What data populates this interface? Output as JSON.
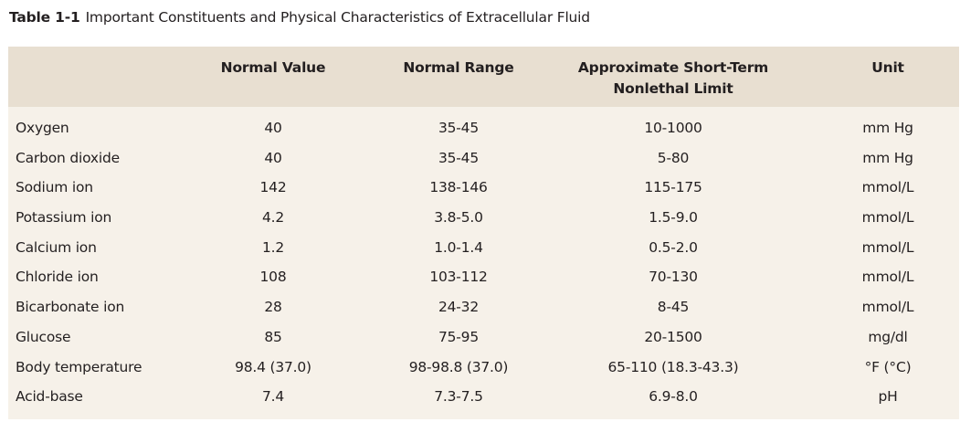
{
  "caption": {
    "label": "Table 1-1",
    "title": "Important Constituents and Physical Characteristics of Extracellular Fluid"
  },
  "headers": {
    "normal_value": "Normal Value",
    "normal_range": "Normal Range",
    "limit_line1": "Approximate Short-Term",
    "limit_line2": "Nonlethal Limit",
    "unit": "Unit"
  },
  "rows": [
    {
      "name": "Oxygen",
      "normal_value": "40",
      "normal_range": "35-45",
      "limit": "10-1000",
      "unit": "mm Hg"
    },
    {
      "name": "Carbon dioxide",
      "normal_value": "40",
      "normal_range": "35-45",
      "limit": "5-80",
      "unit": "mm Hg"
    },
    {
      "name": "Sodium ion",
      "normal_value": "142",
      "normal_range": "138-146",
      "limit": "115-175",
      "unit": "mmol/L"
    },
    {
      "name": "Potassium ion",
      "normal_value": "4.2",
      "normal_range": "3.8-5.0",
      "limit": "1.5-9.0",
      "unit": "mmol/L"
    },
    {
      "name": "Calcium ion",
      "normal_value": "1.2",
      "normal_range": "1.0-1.4",
      "limit": "0.5-2.0",
      "unit": "mmol/L"
    },
    {
      "name": "Chloride ion",
      "normal_value": "108",
      "normal_range": "103-112",
      "limit": "70-130",
      "unit": "mmol/L"
    },
    {
      "name": "Bicarbonate ion",
      "normal_value": "28",
      "normal_range": "24-32",
      "limit": "8-45",
      "unit": "mmol/L"
    },
    {
      "name": "Glucose",
      "normal_value": "85",
      "normal_range": "75-95",
      "limit": "20-1500",
      "unit": "mg/dl"
    },
    {
      "name": "Body temperature",
      "normal_value": "98.4 (37.0)",
      "normal_range": "98-98.8 (37.0)",
      "limit": "65-110 (18.3-43.3)",
      "unit": "°F (°C)"
    },
    {
      "name": "Acid-base",
      "normal_value": "7.4",
      "normal_range": "7.3-7.5",
      "limit": "6.9-8.0",
      "unit": "pH"
    }
  ]
}
